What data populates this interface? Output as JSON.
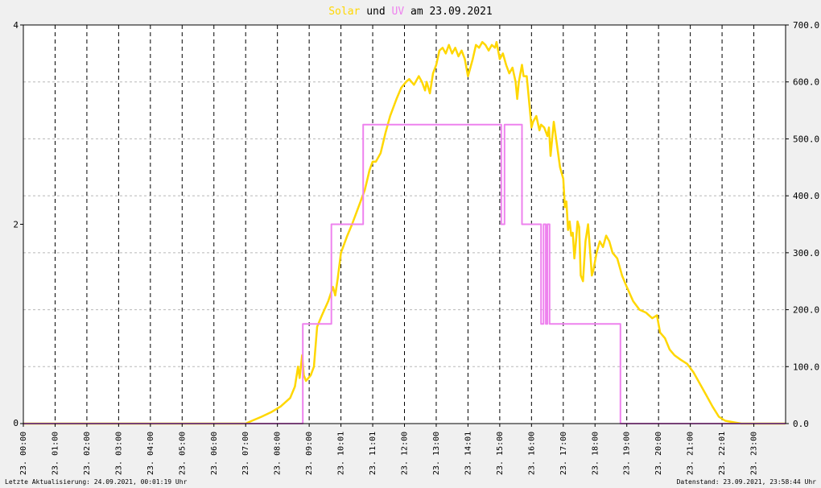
{
  "title": {
    "solar": "Solar",
    "und": "und",
    "uv": "UV",
    "rest": "am 23.09.2021",
    "solar_color": "#ffd700",
    "uv_color": "#ee82ee",
    "text_color": "#000000"
  },
  "footer": {
    "left": "Letzte Aktualisierung: 24.09.2021, 00:01:19 Uhr",
    "right": "Datenstand: 23.09.2021, 23:58:44 Uhr"
  },
  "chart_data": {
    "type": "line",
    "xlabel": "",
    "ylabel": "",
    "grid": true,
    "x_tick_labels": [
      "23. 00:00",
      "23. 01:00",
      "23. 02:00",
      "23. 03:00",
      "23. 04:00",
      "23. 05:00",
      "23. 06:00",
      "23. 07:00",
      "23. 08:00",
      "23. 09:00",
      "23. 10:01",
      "23. 11:01",
      "23. 12:00",
      "23. 13:00",
      "23. 14:01",
      "23. 15:00",
      "23. 16:00",
      "23. 17:00",
      "23. 18:00",
      "23. 19:00",
      "23. 20:00",
      "23. 21:00",
      "23. 22:01",
      "23. 23:00"
    ],
    "y_left": {
      "ylim": [
        0,
        4
      ],
      "ticks": [
        "0",
        "2",
        "4"
      ]
    },
    "y_right": {
      "ylim": [
        0,
        700
      ],
      "ticks": [
        "0.0",
        "100.0",
        "200.0",
        "300.0",
        "400.0",
        "500.0",
        "600.0",
        "700.0"
      ]
    },
    "series": [
      {
        "name": "Solar",
        "axis": "right",
        "color": "#ffd700",
        "points": [
          [
            0.0,
            0
          ],
          [
            7.0,
            0
          ],
          [
            7.2,
            5
          ],
          [
            7.5,
            12
          ],
          [
            7.8,
            20
          ],
          [
            8.1,
            30
          ],
          [
            8.4,
            45
          ],
          [
            8.55,
            65
          ],
          [
            8.65,
            100
          ],
          [
            8.7,
            80
          ],
          [
            8.78,
            120
          ],
          [
            8.83,
            85
          ],
          [
            8.9,
            75
          ],
          [
            9.05,
            85
          ],
          [
            9.15,
            100
          ],
          [
            9.25,
            170
          ],
          [
            9.4,
            190
          ],
          [
            9.6,
            215
          ],
          [
            9.75,
            240
          ],
          [
            9.82,
            225
          ],
          [
            9.9,
            255
          ],
          [
            10.0,
            300
          ],
          [
            10.2,
            330
          ],
          [
            10.35,
            350
          ],
          [
            10.55,
            380
          ],
          [
            10.75,
            410
          ],
          [
            10.9,
            445
          ],
          [
            11.0,
            460
          ],
          [
            11.1,
            460
          ],
          [
            11.25,
            475
          ],
          [
            11.4,
            510
          ],
          [
            11.55,
            540
          ],
          [
            11.75,
            570
          ],
          [
            11.9,
            590
          ],
          [
            12.05,
            600
          ],
          [
            12.15,
            605
          ],
          [
            12.3,
            595
          ],
          [
            12.45,
            610
          ],
          [
            12.55,
            600
          ],
          [
            12.65,
            585
          ],
          [
            12.7,
            600
          ],
          [
            12.8,
            580
          ],
          [
            12.9,
            615
          ],
          [
            13.0,
            630
          ],
          [
            13.1,
            655
          ],
          [
            13.2,
            660
          ],
          [
            13.3,
            650
          ],
          [
            13.4,
            665
          ],
          [
            13.5,
            650
          ],
          [
            13.6,
            660
          ],
          [
            13.7,
            645
          ],
          [
            13.8,
            655
          ],
          [
            13.9,
            640
          ],
          [
            14.0,
            610
          ],
          [
            14.05,
            620
          ],
          [
            14.15,
            640
          ],
          [
            14.25,
            665
          ],
          [
            14.35,
            660
          ],
          [
            14.45,
            670
          ],
          [
            14.55,
            665
          ],
          [
            14.65,
            655
          ],
          [
            14.75,
            665
          ],
          [
            14.85,
            660
          ],
          [
            14.9,
            670
          ],
          [
            15.0,
            640
          ],
          [
            15.1,
            650
          ],
          [
            15.2,
            630
          ],
          [
            15.3,
            615
          ],
          [
            15.4,
            625
          ],
          [
            15.5,
            600
          ],
          [
            15.55,
            570
          ],
          [
            15.6,
            600
          ],
          [
            15.7,
            630
          ],
          [
            15.75,
            610
          ],
          [
            15.85,
            610
          ],
          [
            15.95,
            550
          ],
          [
            16.0,
            520
          ],
          [
            16.05,
            530
          ],
          [
            16.15,
            540
          ],
          [
            16.25,
            515
          ],
          [
            16.3,
            525
          ],
          [
            16.4,
            520
          ],
          [
            16.5,
            505
          ],
          [
            16.55,
            520
          ],
          [
            16.6,
            470
          ],
          [
            16.7,
            530
          ],
          [
            16.8,
            490
          ],
          [
            16.9,
            450
          ],
          [
            17.0,
            430
          ],
          [
            17.05,
            380
          ],
          [
            17.1,
            390
          ],
          [
            17.15,
            340
          ],
          [
            17.2,
            355
          ],
          [
            17.25,
            330
          ],
          [
            17.3,
            335
          ],
          [
            17.35,
            290
          ],
          [
            17.4,
            320
          ],
          [
            17.45,
            355
          ],
          [
            17.5,
            345
          ],
          [
            17.55,
            260
          ],
          [
            17.62,
            250
          ],
          [
            17.7,
            320
          ],
          [
            17.78,
            350
          ],
          [
            17.85,
            300
          ],
          [
            17.9,
            260
          ],
          [
            17.95,
            270
          ],
          [
            18.05,
            300
          ],
          [
            18.15,
            320
          ],
          [
            18.25,
            310
          ],
          [
            18.35,
            330
          ],
          [
            18.45,
            320
          ],
          [
            18.55,
            300
          ],
          [
            18.7,
            290
          ],
          [
            18.85,
            260
          ],
          [
            19.0,
            240
          ],
          [
            19.2,
            215
          ],
          [
            19.4,
            200
          ],
          [
            19.6,
            195
          ],
          [
            19.8,
            185
          ],
          [
            19.95,
            190
          ],
          [
            20.05,
            160
          ],
          [
            20.2,
            150
          ],
          [
            20.35,
            130
          ],
          [
            20.5,
            120
          ],
          [
            20.7,
            112
          ],
          [
            20.9,
            105
          ],
          [
            21.1,
            90
          ],
          [
            21.3,
            70
          ],
          [
            21.5,
            50
          ],
          [
            21.7,
            30
          ],
          [
            21.9,
            12
          ],
          [
            22.1,
            5
          ],
          [
            22.4,
            2
          ],
          [
            22.6,
            0
          ],
          [
            24.0,
            0
          ]
        ]
      },
      {
        "name": "UV",
        "axis": "left",
        "color": "#ee82ee",
        "points": [
          [
            0.0,
            0
          ],
          [
            8.8,
            0
          ],
          [
            8.8,
            1
          ],
          [
            9.7,
            1
          ],
          [
            9.7,
            2
          ],
          [
            10.7,
            2
          ],
          [
            10.7,
            3
          ],
          [
            15.05,
            3
          ],
          [
            15.05,
            2
          ],
          [
            15.15,
            2
          ],
          [
            15.15,
            3
          ],
          [
            15.7,
            3
          ],
          [
            15.7,
            2
          ],
          [
            16.3,
            2
          ],
          [
            16.3,
            1
          ],
          [
            16.38,
            1
          ],
          [
            16.38,
            2
          ],
          [
            16.45,
            2
          ],
          [
            16.45,
            1
          ],
          [
            16.5,
            1
          ],
          [
            16.5,
            2
          ],
          [
            16.57,
            2
          ],
          [
            16.57,
            1
          ],
          [
            18.8,
            1
          ],
          [
            18.8,
            0
          ],
          [
            24.0,
            0
          ]
        ]
      }
    ]
  }
}
